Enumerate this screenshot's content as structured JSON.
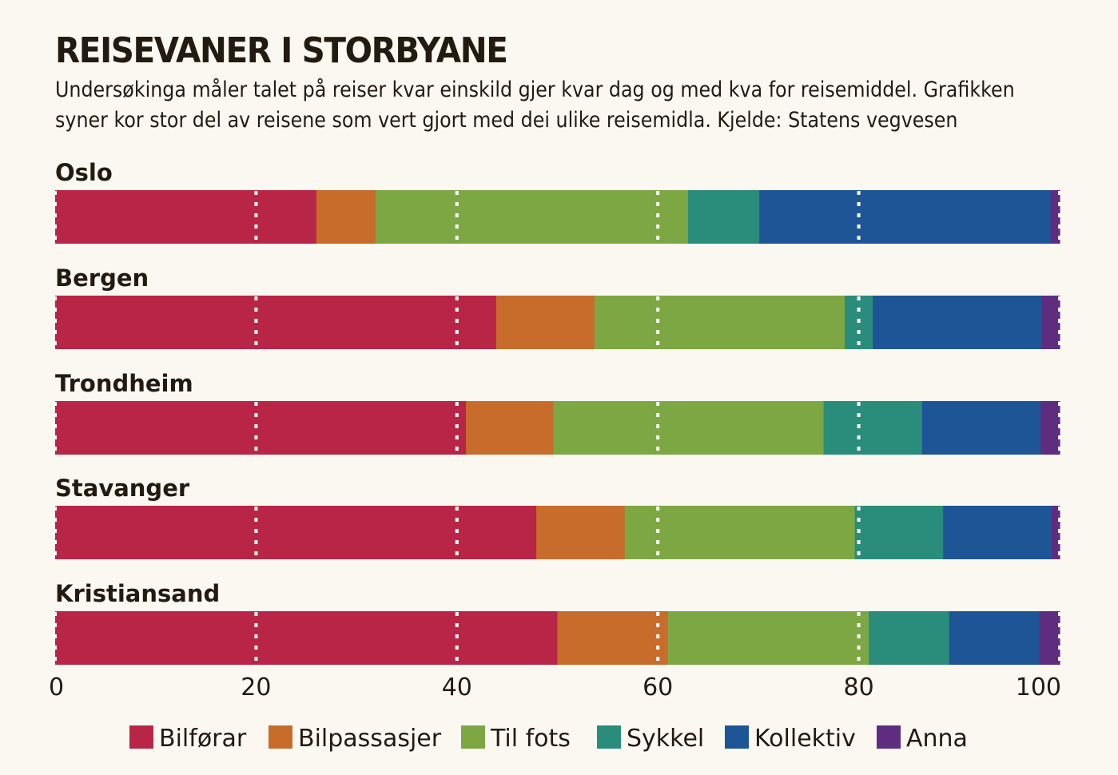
{
  "title": "REISEVANER I STORBYANE",
  "subtitle_lines": [
    "Undersøkinga måler talet på reiser kvar einskild gjer kvar dag og med kva for reisemiddel. Grafikken",
    "syner kor stor del av reisene som vert gjort med dei ulike reisemidla. Kjelde: Statens vegvesen"
  ],
  "chart_data": {
    "type": "bar",
    "orientation": "horizontal",
    "stacked": true,
    "title": "REISEVANER I STORBYANE",
    "categories": [
      "Oslo",
      "Bergen",
      "Trondheim",
      "Stavanger",
      "Kristiansand"
    ],
    "series": [
      {
        "name": "Bilførar",
        "color": "#b82547",
        "values": [
          26,
          43.9,
          40.9,
          47.9,
          50
        ]
      },
      {
        "name": "Bilpassasjer",
        "color": "#c86c2b",
        "values": [
          5.9,
          9.8,
          8.7,
          8.8,
          11
        ]
      },
      {
        "name": "Til fots",
        "color": "#7da743",
        "values": [
          31.1,
          24.9,
          26.9,
          22.9,
          20
        ]
      },
      {
        "name": "Sykkel",
        "color": "#2a8c7a",
        "values": [
          7.1,
          2.8,
          9.8,
          8.8,
          8
        ]
      },
      {
        "name": "Kollektiv",
        "color": "#1e5596",
        "values": [
          29,
          16.8,
          11.8,
          10.8,
          9
        ]
      },
      {
        "name": "Anna",
        "color": "#5e2d80",
        "values": [
          0.9,
          1.8,
          1.9,
          0.8,
          2
        ]
      }
    ],
    "xlim": [
      0,
      100
    ],
    "xticks": [
      0,
      20,
      40,
      60,
      80,
      100
    ],
    "xlabel": "",
    "ylabel": "",
    "grid": "dotted-white-vertical",
    "legend": "bottom"
  }
}
